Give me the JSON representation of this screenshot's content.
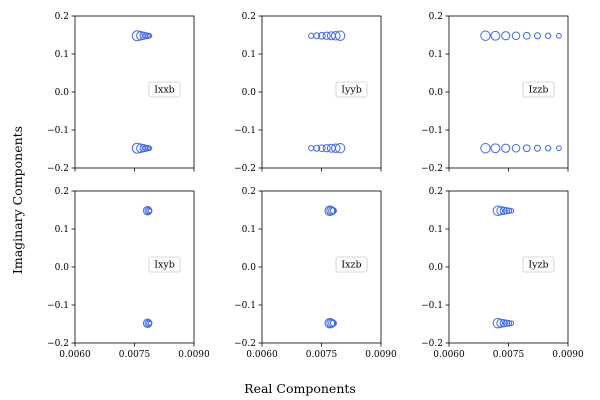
{
  "figure": {
    "xlabel": "Real Components",
    "ylabel": "Imaginary Components"
  },
  "chart_data": [
    {
      "type": "scatter",
      "title": "",
      "xlabel": "",
      "ylabel": "",
      "xlim": [
        0.006,
        0.009
      ],
      "ylim": [
        -0.2,
        0.2
      ],
      "xticks": [
        0.006,
        0.0075,
        0.009
      ],
      "xtick_labels": [],
      "yticks": [
        -0.2,
        -0.1,
        0.0,
        0.1,
        0.2
      ],
      "ytick_labels": [
        "−0.2",
        "−0.1",
        "0.0",
        "0.1",
        "0.2"
      ],
      "legend": "Ixxb",
      "legend_position": "right",
      "color": "#4169E1",
      "points": [
        {
          "x": 0.00757,
          "y": 0.148,
          "s": 5
        },
        {
          "x": 0.00766,
          "y": 0.148,
          "s": 4.2
        },
        {
          "x": 0.00773,
          "y": 0.148,
          "s": 3.6
        },
        {
          "x": 0.00779,
          "y": 0.148,
          "s": 3
        },
        {
          "x": 0.00784,
          "y": 0.148,
          "s": 2.6
        },
        {
          "x": 0.00788,
          "y": 0.148,
          "s": 2.2
        },
        {
          "x": 0.00757,
          "y": -0.148,
          "s": 5
        },
        {
          "x": 0.00766,
          "y": -0.148,
          "s": 4.2
        },
        {
          "x": 0.00773,
          "y": -0.148,
          "s": 3.6
        },
        {
          "x": 0.00779,
          "y": -0.148,
          "s": 3
        },
        {
          "x": 0.00784,
          "y": -0.148,
          "s": 2.6
        },
        {
          "x": 0.00788,
          "y": -0.148,
          "s": 2.2
        }
      ]
    },
    {
      "type": "scatter",
      "title": "",
      "xlabel": "",
      "ylabel": "",
      "xlim": [
        0.006,
        0.009
      ],
      "ylim": [
        -0.2,
        0.2
      ],
      "xticks": [
        0.006,
        0.0075,
        0.009
      ],
      "xtick_labels": [],
      "yticks": [
        -0.2,
        -0.1,
        0.0,
        0.1,
        0.2
      ],
      "ytick_labels": [
        "−0.2",
        "−0.1",
        "0.0",
        "0.1",
        "0.2"
      ],
      "legend": "Iyyb",
      "legend_position": "right",
      "color": "#4169E1",
      "points": [
        {
          "x": 0.00724,
          "y": 0.148,
          "s": 2.6
        },
        {
          "x": 0.00738,
          "y": 0.148,
          "s": 3
        },
        {
          "x": 0.00751,
          "y": 0.148,
          "s": 3.3
        },
        {
          "x": 0.00763,
          "y": 0.148,
          "s": 3.6
        },
        {
          "x": 0.00775,
          "y": 0.148,
          "s": 4
        },
        {
          "x": 0.00786,
          "y": 0.148,
          "s": 4.3
        },
        {
          "x": 0.00797,
          "y": 0.148,
          "s": 4.7
        },
        {
          "x": 0.00724,
          "y": -0.148,
          "s": 2.6
        },
        {
          "x": 0.00738,
          "y": -0.148,
          "s": 3
        },
        {
          "x": 0.00751,
          "y": -0.148,
          "s": 3.3
        },
        {
          "x": 0.00763,
          "y": -0.148,
          "s": 3.6
        },
        {
          "x": 0.00775,
          "y": -0.148,
          "s": 4
        },
        {
          "x": 0.00786,
          "y": -0.148,
          "s": 4.3
        },
        {
          "x": 0.00797,
          "y": -0.148,
          "s": 4.7
        }
      ]
    },
    {
      "type": "scatter",
      "title": "",
      "xlabel": "",
      "ylabel": "",
      "xlim": [
        0.006,
        0.009
      ],
      "ylim": [
        -0.2,
        0.2
      ],
      "xticks": [
        0.006,
        0.0075,
        0.009
      ],
      "xtick_labels": [],
      "yticks": [
        -0.2,
        -0.1,
        0.0,
        0.1,
        0.2
      ],
      "ytick_labels": [
        "−0.2",
        "−0.1",
        "0.0",
        "0.1",
        "0.2"
      ],
      "legend": "Izzb",
      "legend_position": "right",
      "color": "#4169E1",
      "points": [
        {
          "x": 0.00692,
          "y": 0.148,
          "s": 4.7
        },
        {
          "x": 0.00717,
          "y": 0.148,
          "s": 4.4
        },
        {
          "x": 0.00743,
          "y": 0.148,
          "s": 4.1
        },
        {
          "x": 0.00769,
          "y": 0.148,
          "s": 3.8
        },
        {
          "x": 0.00796,
          "y": 0.148,
          "s": 3.4
        },
        {
          "x": 0.00823,
          "y": 0.148,
          "s": 3
        },
        {
          "x": 0.0085,
          "y": 0.148,
          "s": 2.7
        },
        {
          "x": 0.00877,
          "y": 0.148,
          "s": 2.4
        },
        {
          "x": 0.00692,
          "y": -0.148,
          "s": 4.7
        },
        {
          "x": 0.00717,
          "y": -0.148,
          "s": 4.4
        },
        {
          "x": 0.00743,
          "y": -0.148,
          "s": 4.1
        },
        {
          "x": 0.00769,
          "y": -0.148,
          "s": 3.8
        },
        {
          "x": 0.00796,
          "y": -0.148,
          "s": 3.4
        },
        {
          "x": 0.00823,
          "y": -0.148,
          "s": 3
        },
        {
          "x": 0.0085,
          "y": -0.148,
          "s": 2.7
        },
        {
          "x": 0.00877,
          "y": -0.148,
          "s": 2.4
        }
      ]
    },
    {
      "type": "scatter",
      "title": "",
      "xlabel": "",
      "ylabel": "",
      "xlim": [
        0.006,
        0.009
      ],
      "ylim": [
        -0.2,
        0.2
      ],
      "xticks": [
        0.006,
        0.0075,
        0.009
      ],
      "xtick_labels": [
        "0.0060",
        "0.0075",
        "0.0090"
      ],
      "yticks": [
        -0.2,
        -0.1,
        0.0,
        0.1,
        0.2
      ],
      "ytick_labels": [
        "−0.2",
        "−0.1",
        "0.0",
        "0.1",
        "0.2"
      ],
      "legend": "Ixyb",
      "legend_position": "right",
      "color": "#4169E1",
      "points": [
        {
          "x": 0.00783,
          "y": 0.148,
          "s": 4.2
        },
        {
          "x": 0.00785,
          "y": 0.148,
          "s": 3.4
        },
        {
          "x": 0.00787,
          "y": 0.148,
          "s": 2.6
        },
        {
          "x": 0.00789,
          "y": 0.148,
          "s": 1.8
        },
        {
          "x": 0.00783,
          "y": -0.148,
          "s": 4.2
        },
        {
          "x": 0.00785,
          "y": -0.148,
          "s": 3.4
        },
        {
          "x": 0.00787,
          "y": -0.148,
          "s": 2.6
        },
        {
          "x": 0.00789,
          "y": -0.148,
          "s": 1.8
        }
      ]
    },
    {
      "type": "scatter",
      "title": "",
      "xlabel": "",
      "ylabel": "",
      "xlim": [
        0.006,
        0.009
      ],
      "ylim": [
        -0.2,
        0.2
      ],
      "xticks": [
        0.006,
        0.0075,
        0.009
      ],
      "xtick_labels": [
        "0.0060",
        "0.0075",
        "0.0090"
      ],
      "yticks": [
        -0.2,
        -0.1,
        0.0,
        0.1,
        0.2
      ],
      "ytick_labels": [
        "−0.2",
        "−0.1",
        "0.0",
        "0.1",
        "0.2"
      ],
      "legend": "Ixzb",
      "legend_position": "right",
      "color": "#4169E1",
      "points": [
        {
          "x": 0.00771,
          "y": 0.148,
          "s": 4.8
        },
        {
          "x": 0.00774,
          "y": 0.148,
          "s": 4.2
        },
        {
          "x": 0.00777,
          "y": 0.148,
          "s": 3.6
        },
        {
          "x": 0.0078,
          "y": 0.148,
          "s": 3
        },
        {
          "x": 0.00771,
          "y": -0.148,
          "s": 4.8
        },
        {
          "x": 0.00774,
          "y": -0.148,
          "s": 4.2
        },
        {
          "x": 0.00777,
          "y": -0.148,
          "s": 3.6
        },
        {
          "x": 0.0078,
          "y": -0.148,
          "s": 3
        }
      ]
    },
    {
      "type": "scatter",
      "title": "",
      "xlabel": "",
      "ylabel": "",
      "xlim": [
        0.006,
        0.009
      ],
      "ylim": [
        -0.2,
        0.2
      ],
      "xticks": [
        0.006,
        0.0075,
        0.009
      ],
      "xtick_labels": [
        "0.0060",
        "0.0075",
        "0.0090"
      ],
      "yticks": [
        -0.2,
        -0.1,
        0.0,
        0.1,
        0.2
      ],
      "ytick_labels": [
        "−0.2",
        "−0.1",
        "0.0",
        "0.1",
        "0.2"
      ],
      "legend": "Iyzb",
      "legend_position": "right",
      "color": "#4169E1",
      "points": [
        {
          "x": 0.00723,
          "y": 0.148,
          "s": 4.7
        },
        {
          "x": 0.00731,
          "y": 0.148,
          "s": 4.1
        },
        {
          "x": 0.00738,
          "y": 0.148,
          "s": 3.6
        },
        {
          "x": 0.00745,
          "y": 0.148,
          "s": 3.1
        },
        {
          "x": 0.00751,
          "y": 0.148,
          "s": 2.7
        },
        {
          "x": 0.00757,
          "y": 0.148,
          "s": 2.3
        },
        {
          "x": 0.00723,
          "y": -0.148,
          "s": 4.7
        },
        {
          "x": 0.00731,
          "y": -0.148,
          "s": 4.1
        },
        {
          "x": 0.00738,
          "y": -0.148,
          "s": 3.6
        },
        {
          "x": 0.00745,
          "y": -0.148,
          "s": 3.1
        },
        {
          "x": 0.00751,
          "y": -0.148,
          "s": 2.7
        },
        {
          "x": 0.00757,
          "y": -0.148,
          "s": 2.3
        }
      ]
    }
  ]
}
